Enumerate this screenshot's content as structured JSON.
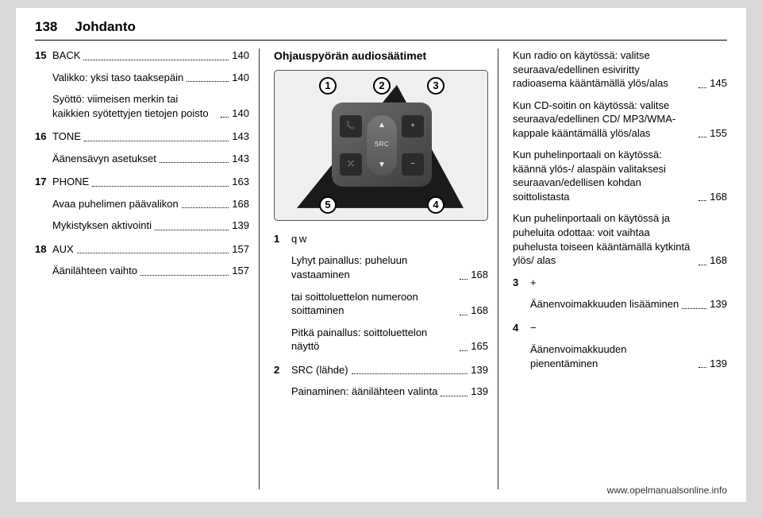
{
  "header": {
    "page_number": "138",
    "title": "Johdanto"
  },
  "col1": {
    "items": [
      {
        "num": "15",
        "label": "BACK",
        "page": "140",
        "subs": [
          {
            "text": "Valikko: yksi taso taaksepäin",
            "page": "140"
          },
          {
            "text": "Syöttö: viimeisen merkin tai kaikkien syötettyjen tietojen poisto",
            "page": "140"
          }
        ]
      },
      {
        "num": "16",
        "label": "TONE",
        "page": "143",
        "subs": [
          {
            "text": "Äänensävyn asetukset",
            "page": "143"
          }
        ]
      },
      {
        "num": "17",
        "label": "PHONE",
        "page": "163",
        "subs": [
          {
            "text": "Avaa puhelimen päävalikon",
            "page": "168"
          },
          {
            "text": "Mykistyksen aktivointi",
            "page": "139"
          }
        ]
      },
      {
        "num": "18",
        "label": "AUX",
        "page": "157",
        "subs": [
          {
            "text": "Äänilähteen vaihto",
            "page": "157"
          }
        ]
      }
    ]
  },
  "col2": {
    "heading": "Ohjauspyörän audiosäätimet",
    "figure": {
      "callouts": [
        "1",
        "2",
        "3",
        "4",
        "5"
      ],
      "src_label": "SRC"
    },
    "items": [
      {
        "num": "1",
        "label": "q w",
        "subs": [
          {
            "text": "Lyhyt painallus: puheluun vastaaminen",
            "page": "168"
          },
          {
            "text": "tai soittoluettelon numeroon soittaminen",
            "page": "168"
          },
          {
            "text": "Pitkä painallus: soittoluettelon näyttö",
            "page": "165"
          }
        ]
      },
      {
        "num": "2",
        "label": "SRC (lähde)",
        "page": "139",
        "subs": [
          {
            "text": "Painaminen: äänilähteen valinta",
            "page": "139"
          }
        ]
      }
    ]
  },
  "col3": {
    "continuation": [
      {
        "text": "Kun radio on käytössä: valitse seuraava/edellinen esiviritty radioasema kääntämällä ylös/alas",
        "page": "145"
      },
      {
        "text": "Kun CD-soitin on käytössä: valitse seuraava/edellinen CD/ MP3/WMA-kappale kääntämällä ylös/alas",
        "page": "155"
      },
      {
        "text": "Kun puhelinportaali on käytössä: käännä ylös-/ alaspäin valitaksesi seuraavan/edellisen kohdan soittolistasta",
        "page": "168"
      },
      {
        "text": "Kun puhelinportaali on käytössä ja puheluita odottaa: voit vaihtaa puhelusta toiseen kääntämällä kytkintä ylös/ alas",
        "page": "168"
      }
    ],
    "items": [
      {
        "num": "3",
        "label": "+",
        "subs": [
          {
            "text": "Äänenvoimakkuuden lisääminen",
            "page": "139"
          }
        ]
      },
      {
        "num": "4",
        "label": "−",
        "subs": [
          {
            "text": "Äänenvoimakkuuden pienentäminen",
            "page": "139"
          }
        ]
      }
    ]
  },
  "footer": "www.opelmanualsonline.info"
}
